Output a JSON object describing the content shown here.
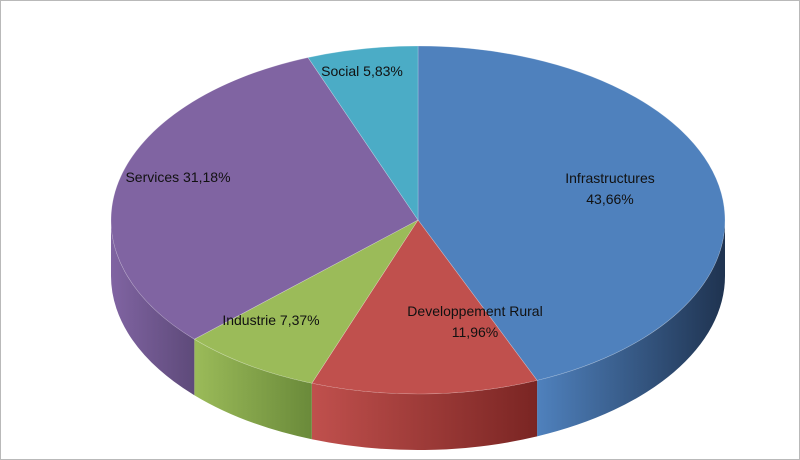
{
  "chart_data": {
    "type": "pie",
    "style": "3d",
    "title": "",
    "slices": [
      {
        "name": "Infrastructures",
        "value": 43.66,
        "label_lines": [
          "Infrastructures",
          "43,66%"
        ],
        "color": "#4F81BD",
        "side_color": "#1F3350"
      },
      {
        "name": "Developpement Rural",
        "value": 11.96,
        "label_lines": [
          "Developpement  Rural",
          "11,96%"
        ],
        "color": "#C0504D",
        "side_color": "#7A2523"
      },
      {
        "name": "Industrie",
        "value": 7.37,
        "label_lines": [
          "Industrie 7,37%"
        ],
        "color": "#9BBB59",
        "side_color": "#6A8A3A"
      },
      {
        "name": "Services",
        "value": 31.18,
        "label_lines": [
          "Services 31,18%"
        ],
        "color": "#8064A2",
        "side_color": "#5E4A7A"
      },
      {
        "name": "Social",
        "value": 5.83,
        "label_lines": [
          "Social 5,83%"
        ],
        "color": "#4BACC6",
        "side_color": "#2F7F95"
      }
    ]
  }
}
